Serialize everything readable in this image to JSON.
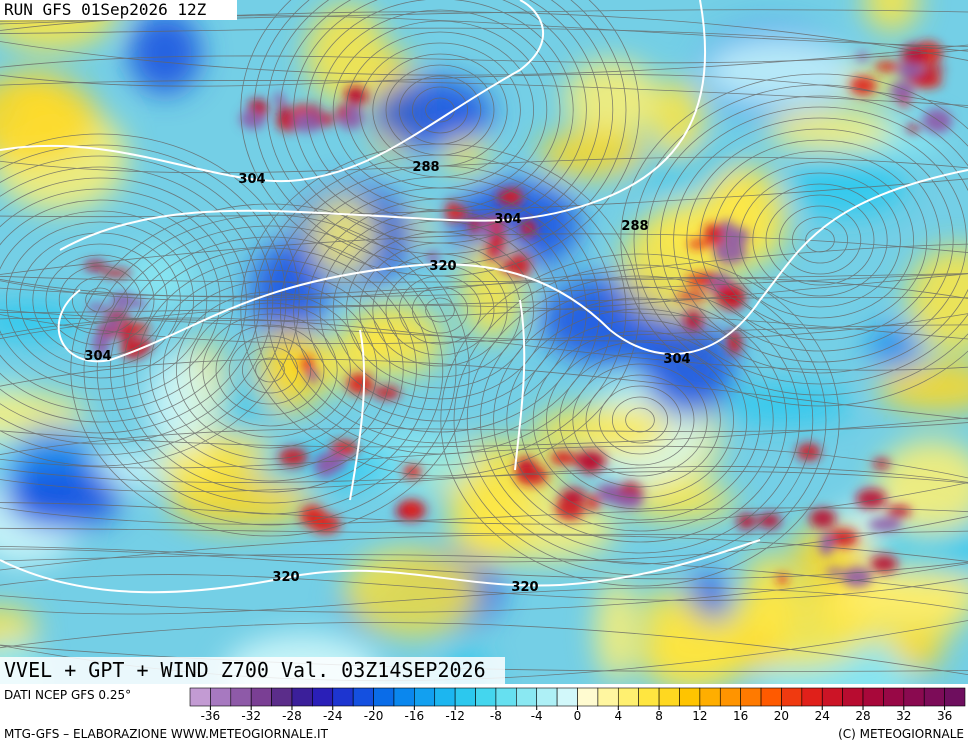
{
  "header": {
    "run": "RUN GFS 01Sep2026 12Z"
  },
  "map": {
    "title": "VVEL + GPT + WIND Z700 Val. 03Z14SEP2026",
    "contour_labels": [
      304,
      288,
      304,
      288,
      320,
      304,
      304,
      320,
      320
    ]
  },
  "colorbar": {
    "source": "DATI NCEP GFS 0.25°",
    "ticks": [
      -36,
      -32,
      -28,
      -24,
      -20,
      -16,
      -12,
      -8,
      -4,
      0,
      4,
      8,
      12,
      16,
      20,
      24,
      28,
      32,
      36
    ],
    "colors": [
      "#c39bd3",
      "#a779c0",
      "#8e5aa8",
      "#7a3f94",
      "#5b2d8a",
      "#3b1f9a",
      "#2a1fb8",
      "#1d35d0",
      "#1450e0",
      "#0a6ce8",
      "#0a87ee",
      "#12a0f0",
      "#1cb6f0",
      "#2cc8ee",
      "#44d6ee",
      "#66e0f0",
      "#8ae8f2",
      "#aef0f6",
      "#d2f8fa",
      "#fffbd0",
      "#fff6a0",
      "#fff070",
      "#ffe640",
      "#ffd820",
      "#ffc400",
      "#ffae00",
      "#ff9400",
      "#ff7a00",
      "#ff5a00",
      "#f03a10",
      "#e0201a",
      "#cc1426",
      "#b80c30",
      "#a8083a",
      "#980846",
      "#8a0a50",
      "#7c0c58",
      "#6e0e5e"
    ]
  },
  "footer": {
    "credit": "MTG-GFS – ELABORAZIONE WWW.METEOGIORNALE.IT",
    "copyright": "(C) METEOGIORNALE"
  }
}
